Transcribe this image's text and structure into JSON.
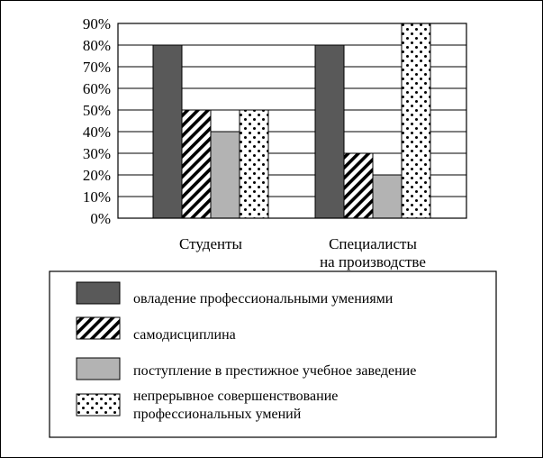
{
  "chart_data": {
    "type": "bar",
    "categories": [
      [
        "Студенты"
      ],
      [
        "Специалисты",
        "на производстве"
      ]
    ],
    "series": [
      {
        "name": "овладение профессиональными умениями",
        "values": [
          80,
          80
        ],
        "pattern": "solid-dark"
      },
      {
        "name": "самодисциплина",
        "values": [
          50,
          30
        ],
        "pattern": "diagonal-hatch"
      },
      {
        "name": "поступление в престижное учебное заведение",
        "values": [
          40,
          20
        ],
        "pattern": "solid-gray"
      },
      {
        "name": "непрерывное совершенствование профессиональных умений",
        "name_lines": [
          "непрерывное совершенствование",
          "профессиональных умений"
        ],
        "values": [
          50,
          90
        ],
        "pattern": "dots"
      }
    ],
    "yticks": [
      "0%",
      "10%",
      "20%",
      "30%",
      "40%",
      "50%",
      "60%",
      "70%",
      "80%",
      "90%"
    ],
    "ylim": [
      0,
      90
    ],
    "grid": true,
    "legend_position": "bottom",
    "colors": {
      "dark": "#595959",
      "gray": "#b3b3b3",
      "line": "#000000",
      "background": "#ffffff"
    }
  }
}
